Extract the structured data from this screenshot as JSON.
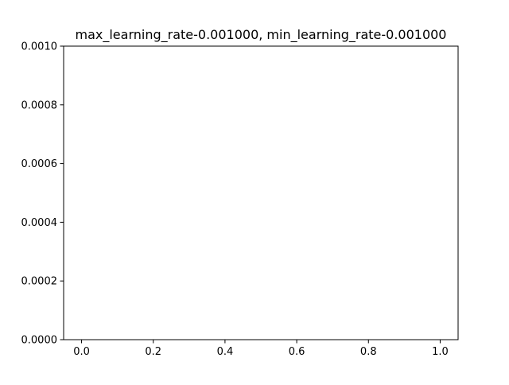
{
  "chart_data": {
    "type": "line",
    "title": "max_learning_rate-0.001000, min_learning_rate-0.001000",
    "xlabel": "",
    "ylabel": "",
    "xlim": [
      -0.05,
      1.05
    ],
    "ylim": [
      0,
      0.001
    ],
    "x_ticks": [
      0.0,
      0.2,
      0.4,
      0.6,
      0.8,
      1.0
    ],
    "x_tick_labels": [
      "0.0",
      "0.2",
      "0.4",
      "0.6",
      "0.8",
      "1.0"
    ],
    "y_ticks": [
      0,
      0.0002,
      0.0004,
      0.0006,
      0.0008,
      0.001
    ],
    "y_tick_labels": [
      "0.0000",
      "0.0002",
      "0.0004",
      "0.0006",
      "0.0008",
      "0.0010"
    ],
    "grid": false,
    "series": [
      {
        "x": [],
        "y": []
      }
    ]
  }
}
